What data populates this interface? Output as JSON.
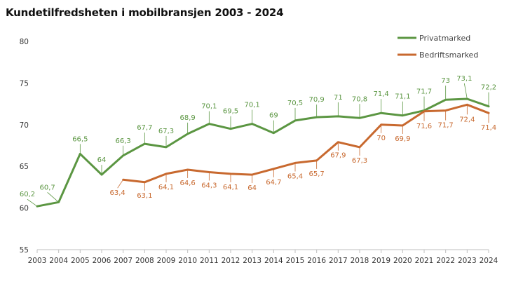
{
  "chart_data": {
    "type": "line",
    "title": "Kundetilfredsheten i mobilbransjen 2003 - 2024",
    "xlabel": "",
    "ylabel": "",
    "ylim": [
      55,
      80
    ],
    "yticks": [
      55,
      60,
      65,
      70,
      75,
      80
    ],
    "x": [
      2003,
      2004,
      2005,
      2006,
      2007,
      2008,
      2009,
      2010,
      2011,
      2012,
      2013,
      2014,
      2015,
      2016,
      2017,
      2018,
      2019,
      2020,
      2021,
      2022,
      2023,
      2024
    ],
    "legend_position": "top-right",
    "series": [
      {
        "name": "Privatmarked",
        "color": "#5b9642",
        "values": [
          60.2,
          60.7,
          66.5,
          64,
          66.3,
          67.7,
          67.3,
          68.9,
          70.1,
          69.5,
          70.1,
          69,
          70.5,
          70.9,
          71,
          70.8,
          71.4,
          71.1,
          71.7,
          73,
          73.1,
          72.2
        ],
        "labels": [
          "60,2",
          "60,7",
          "66,5",
          "64",
          "66,3",
          "67,7",
          "67,3",
          "68,9",
          "70,1",
          "69,5",
          "70,1",
          "69",
          "70,5",
          "70,9",
          "71",
          "70,8",
          "71,4",
          "71,1",
          "71,7",
          "73",
          "73,1",
          "72,2"
        ]
      },
      {
        "name": "Bedriftsmarked",
        "color": "#c8692f",
        "values": [
          null,
          null,
          null,
          null,
          63.4,
          63.1,
          64.1,
          64.6,
          64.3,
          64.1,
          64,
          64.7,
          65.4,
          65.7,
          67.9,
          67.3,
          70,
          69.9,
          71.6,
          71.7,
          72.4,
          71.4
        ],
        "labels": [
          null,
          null,
          null,
          null,
          "63,4",
          "63,1",
          "64,1",
          "64,6",
          "64,3",
          "64,1",
          "64",
          "64,7",
          "65,4",
          "65,7",
          "67,9",
          "67,3",
          "70",
          "69,9",
          "71,6",
          "71,7",
          "72,4",
          "71,4"
        ]
      }
    ]
  }
}
